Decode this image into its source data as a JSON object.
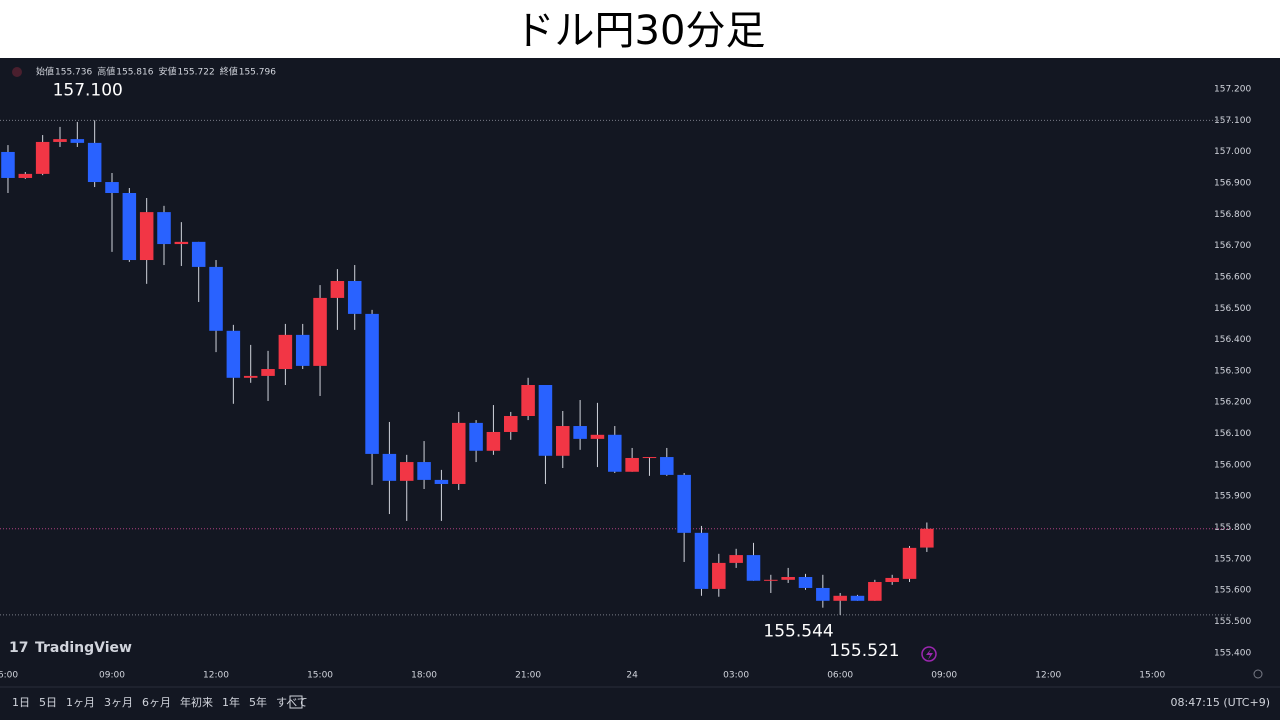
{
  "chart_data": {
    "type": "candlestick",
    "title": "ドル円30分足",
    "legend": [
      {
        "label": "始値",
        "value": "155.736"
      },
      {
        "label": "高値",
        "value": "155.816"
      },
      {
        "label": "安値",
        "value": "155.722"
      },
      {
        "label": "終値",
        "value": "155.796"
      }
    ],
    "x": [
      0,
      0.5,
      1,
      1.5,
      2,
      2.5,
      3,
      3.5,
      4,
      4.5,
      5,
      5.5,
      6,
      6.5,
      7,
      7.5,
      8,
      8.5,
      9,
      9.5,
      10,
      10.5,
      11,
      11.5,
      12,
      12.5,
      13,
      13.5,
      14,
      14.5,
      15,
      15.5,
      16,
      16.5,
      17,
      17.5,
      18,
      18.5,
      19,
      19.5,
      20,
      20.5,
      21,
      21.5,
      22,
      22.5,
      23,
      23.5,
      24,
      24.5,
      25,
      25.5,
      26,
      26.5
    ],
    "open": [
      156.999,
      156.916,
      156.929,
      157.031,
      157.04,
      157.028,
      156.903,
      156.868,
      156.654,
      156.807,
      156.705,
      156.712,
      156.632,
      156.428,
      156.278,
      156.284,
      156.306,
      156.415,
      156.316,
      156.533,
      156.587,
      156.482,
      156.035,
      155.949,
      156.009,
      155.952,
      155.939,
      156.134,
      156.045,
      156.105,
      156.156,
      156.255,
      156.029,
      156.124,
      156.083,
      156.096,
      155.978,
      156.022,
      156.025,
      155.968,
      155.783,
      155.604,
      155.687,
      155.712,
      155.63,
      155.633,
      155.642,
      155.607,
      155.566,
      155.582,
      155.566,
      155.626,
      155.636,
      155.736
    ],
    "high": [
      157.021,
      156.935,
      157.053,
      157.079,
      157.095,
      157.1,
      156.932,
      156.884,
      156.852,
      156.827,
      156.775,
      156.712,
      156.654,
      156.447,
      156.383,
      156.364,
      156.45,
      156.45,
      156.574,
      156.625,
      156.638,
      156.495,
      156.137,
      156.032,
      156.076,
      155.984,
      156.169,
      156.143,
      156.191,
      156.169,
      156.278,
      156.255,
      156.172,
      156.207,
      156.198,
      156.124,
      156.054,
      156.025,
      156.054,
      155.974,
      155.805,
      155.716,
      155.732,
      155.751,
      155.649,
      155.671,
      155.652,
      155.649,
      155.591,
      155.585,
      155.633,
      155.649,
      155.741,
      155.816
    ],
    "low": [
      156.868,
      156.913,
      156.925,
      157.015,
      157.015,
      156.887,
      156.68,
      156.648,
      156.578,
      156.638,
      156.635,
      156.52,
      156.36,
      156.195,
      156.262,
      156.204,
      156.255,
      156.306,
      156.22,
      156.431,
      156.431,
      155.936,
      155.843,
      155.821,
      155.923,
      155.821,
      155.92,
      156.009,
      156.032,
      156.08,
      156.143,
      155.939,
      155.99,
      156.048,
      155.993,
      155.974,
      155.978,
      155.965,
      155.965,
      155.69,
      155.582,
      155.579,
      155.671,
      155.63,
      155.591,
      155.623,
      155.601,
      155.544,
      155.521,
      155.566,
      155.566,
      155.617,
      155.626,
      155.722
    ],
    "close": [
      156.916,
      156.929,
      157.031,
      157.04,
      157.028,
      156.903,
      156.868,
      156.654,
      156.807,
      156.705,
      156.712,
      156.632,
      156.428,
      156.278,
      156.284,
      156.306,
      156.415,
      156.316,
      156.533,
      156.587,
      156.482,
      156.035,
      155.949,
      156.009,
      155.952,
      155.939,
      156.134,
      156.045,
      156.105,
      156.156,
      156.255,
      156.029,
      156.124,
      156.083,
      156.096,
      155.978,
      156.022,
      156.025,
      155.968,
      155.783,
      155.604,
      155.687,
      155.712,
      155.63,
      155.633,
      155.642,
      155.607,
      155.566,
      155.582,
      155.566,
      155.626,
      155.639,
      155.735,
      155.796
    ],
    "up_color": "#f23645",
    "down_color": "#2962ff",
    "xlim": [
      -0.23,
      35.3
    ],
    "xticks": [
      {
        "value": 0,
        "label": "6:00"
      },
      {
        "value": 3,
        "label": "09:00"
      },
      {
        "value": 6,
        "label": "12:00"
      },
      {
        "value": 9,
        "label": "15:00"
      },
      {
        "value": 12,
        "label": "18:00"
      },
      {
        "value": 15,
        "label": "21:00"
      },
      {
        "value": 18,
        "label": "24"
      },
      {
        "value": 21,
        "label": "03:00"
      },
      {
        "value": 24,
        "label": "06:00"
      },
      {
        "value": 27,
        "label": "09:00"
      },
      {
        "value": 30,
        "label": "12:00"
      },
      {
        "value": 33,
        "label": "15:00"
      }
    ],
    "ylim": [
      155.294,
      157.299
    ],
    "yticks": [
      {
        "value": 155.4,
        "label": "155.400"
      },
      {
        "value": 155.5,
        "label": "155.500"
      },
      {
        "value": 155.6,
        "label": "155.600"
      },
      {
        "value": 155.7,
        "label": "155.700"
      },
      {
        "value": 155.8,
        "label": "155.800"
      },
      {
        "value": 155.9,
        "label": "155.900"
      },
      {
        "value": 156,
        "label": "156.000"
      },
      {
        "value": 156.1,
        "label": "156.100"
      },
      {
        "value": 156.2,
        "label": "156.200"
      },
      {
        "value": 156.3,
        "label": "156.300"
      },
      {
        "value": 156.4,
        "label": "156.400"
      },
      {
        "value": 156.5,
        "label": "156.500"
      },
      {
        "value": 156.6,
        "label": "156.600"
      },
      {
        "value": 156.7,
        "label": "156.700"
      },
      {
        "value": 156.8,
        "label": "156.800"
      },
      {
        "value": 156.9,
        "label": "156.900"
      },
      {
        "value": 157,
        "label": "157.000"
      },
      {
        "value": 157.1,
        "label": "157.100"
      },
      {
        "value": 157.2,
        "label": "157.200"
      }
    ],
    "grid": false,
    "annotations": [
      {
        "value": 157.1,
        "label": "157.100",
        "x": 2.3,
        "hline": true
      },
      {
        "value": 155.544,
        "label": "155.544",
        "x": 22.8,
        "hline": false
      },
      {
        "value": 155.521,
        "label": "155.521",
        "x": 24.7,
        "hline": true
      }
    ],
    "brand": "TradingView",
    "toolbar": [
      "1日",
      "5日",
      "1ヶ月",
      "3ヶ月",
      "6ヶ月",
      "年初来",
      "1年",
      "5年",
      "すべて"
    ],
    "clock": "08:47:15 (UTC+9)"
  }
}
